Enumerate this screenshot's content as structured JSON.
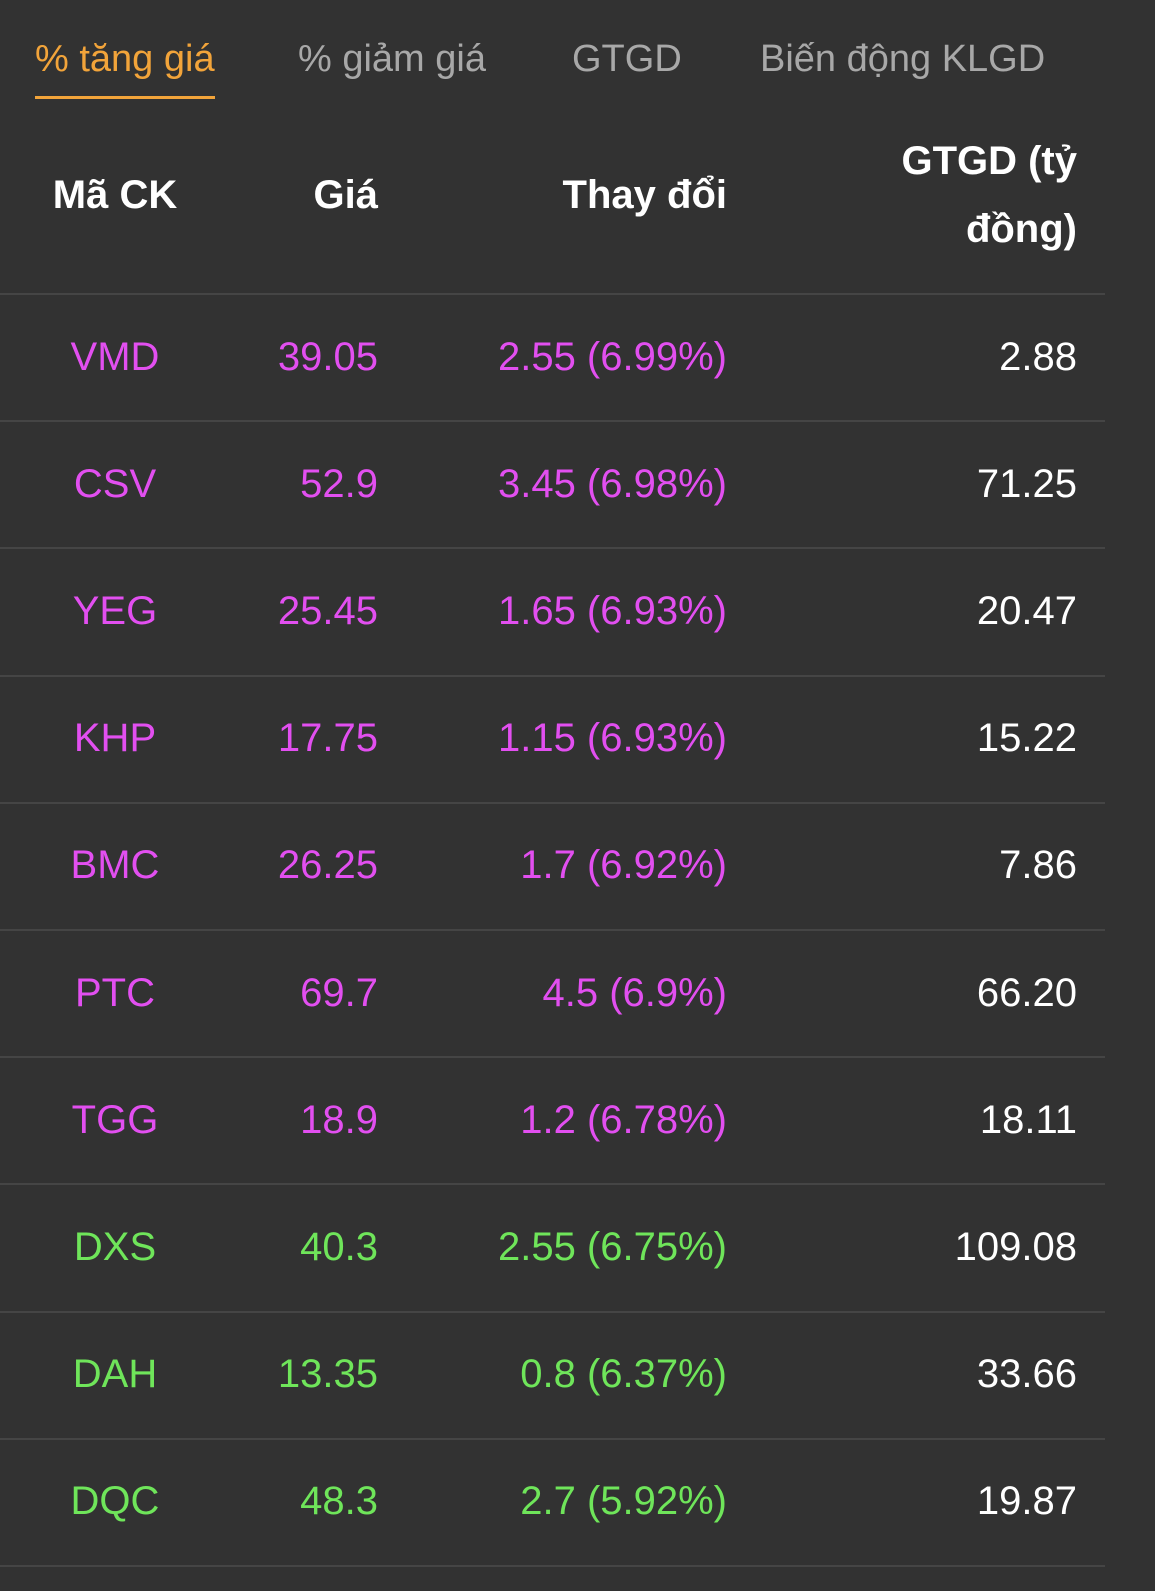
{
  "tabs": [
    {
      "label": "% tăng giá",
      "active": true
    },
    {
      "label": "% giảm giá",
      "active": false
    },
    {
      "label": "GTGD",
      "active": false
    },
    {
      "label": "Biến động KLGD",
      "active": false
    }
  ],
  "table": {
    "headers": [
      "Mã CK",
      "Giá",
      "Thay đổi",
      "GTGD (tỷ đồng)"
    ],
    "rows": [
      {
        "color": "#e24ff0",
        "cells": [
          "VMD",
          "39.05",
          "2.55 (6.99%)",
          "2.88"
        ]
      },
      {
        "color": "#e24ff0",
        "cells": [
          "CSV",
          "52.9",
          "3.45 (6.98%)",
          "71.25"
        ]
      },
      {
        "color": "#e24ff0",
        "cells": [
          "YEG",
          "25.45",
          "1.65 (6.93%)",
          "20.47"
        ]
      },
      {
        "color": "#e24ff0",
        "cells": [
          "KHP",
          "17.75",
          "1.15 (6.93%)",
          "15.22"
        ]
      },
      {
        "color": "#e24ff0",
        "cells": [
          "BMC",
          "26.25",
          "1.7 (6.92%)",
          "7.86"
        ]
      },
      {
        "color": "#e24ff0",
        "cells": [
          "PTC",
          "69.7",
          "4.5 (6.9%)",
          "66.20"
        ]
      },
      {
        "color": "#e24ff0",
        "cells": [
          "TGG",
          "18.9",
          "1.2 (6.78%)",
          "18.11"
        ]
      },
      {
        "color": "#6fe55a",
        "cells": [
          "DXS",
          "40.3",
          "2.55 (6.75%)",
          "109.08"
        ]
      },
      {
        "color": "#6fe55a",
        "cells": [
          "DAH",
          "13.35",
          "0.8 (6.37%)",
          "33.66"
        ]
      },
      {
        "color": "#6fe55a",
        "cells": [
          "DQC",
          "48.3",
          "2.7 (5.92%)",
          "19.87"
        ]
      }
    ]
  }
}
